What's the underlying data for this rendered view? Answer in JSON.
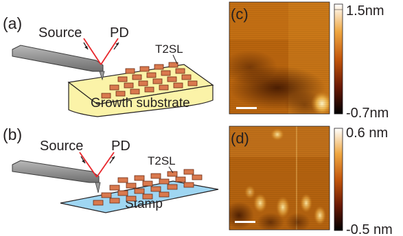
{
  "panel_a": {
    "label": "(a)",
    "source_label": "Source",
    "pd_label": "PD",
    "t2sl_label": "T2SL",
    "substrate_label": "Growth substrate"
  },
  "panel_b": {
    "label": "(b)",
    "source_label": "Source",
    "pd_label": "PD",
    "t2sl_label": "T2SL",
    "substrate_label": "Stamp"
  },
  "panel_c": {
    "label": "(c)",
    "scale_max": "1.5nm",
    "scale_min": "-0.7nm"
  },
  "panel_d": {
    "label": "(d)",
    "scale_max": "0.6 nm",
    "scale_min": "-0.5 nm"
  },
  "colors": {
    "laser": "#e8262b",
    "substrate_fill": "#fbf3a8",
    "stamp_fill": "#9fd6f2",
    "pad_fill": "#d9794e",
    "cantilever": "#8c8c8c"
  }
}
